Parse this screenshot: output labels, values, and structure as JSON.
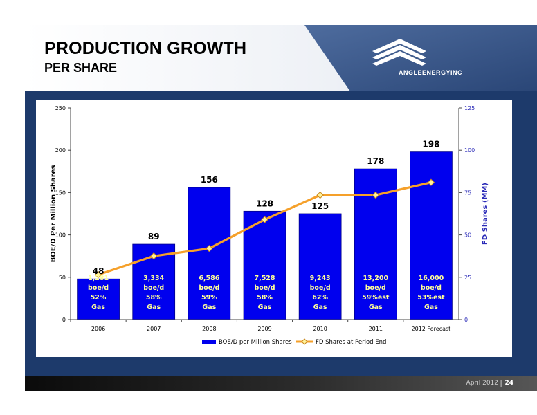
{
  "header": {
    "title": "PRODUCTION GROWTH",
    "subtitle": "PER SHARE",
    "brand": "ANGLEENERGYINC"
  },
  "footer": {
    "date": "April 2012",
    "page": "24"
  },
  "colors": {
    "bar": "#0000ee",
    "line": "#f5a02a",
    "marker": "#fff29a",
    "right_axis": "#2b2bb8",
    "slide_bg": "#1d3a6b"
  },
  "chart_data": {
    "type": "bar",
    "categories": [
      "2006",
      "2007",
      "2008",
      "2009",
      "2010",
      "2011",
      "2012 Forecast"
    ],
    "series": [
      {
        "name": "BOE/D per Million Shares",
        "type": "bar",
        "axis": "left",
        "values": [
          48,
          89,
          156,
          128,
          125,
          178,
          198
        ]
      },
      {
        "name": "FD Shares at Period End",
        "type": "line",
        "axis": "right",
        "values": [
          26.5,
          37.5,
          42,
          59,
          73.5,
          73.5,
          81
        ]
      }
    ],
    "data_labels": [
      "48",
      "89",
      "156",
      "128",
      "125",
      "178",
      "198"
    ],
    "annotations": [
      [
        "1,281",
        "boe/d",
        "52%",
        "Gas"
      ],
      [
        "3,334",
        "boe/d",
        "58%",
        "Gas"
      ],
      [
        "6,586",
        "boe/d",
        "59%",
        "Gas"
      ],
      [
        "7,528",
        "boe/d",
        "58%",
        "Gas"
      ],
      [
        "9,243",
        "boe/d",
        "62%",
        "Gas"
      ],
      [
        "13,200",
        "boe/d",
        "59%est",
        "Gas"
      ],
      [
        "16,000",
        "boe/d",
        "53%est",
        "Gas"
      ]
    ],
    "ylabel": "BOE/D Per Million Shares",
    "ylabel_right": "FD Shares (MM)",
    "ylim": [
      0,
      250
    ],
    "ylim_right": [
      0,
      125
    ],
    "yticks": [
      "0",
      "50",
      "100",
      "150",
      "200",
      "250"
    ],
    "yticks_right": [
      "0",
      "25",
      "50",
      "75",
      "100",
      "125"
    ],
    "grid": false,
    "legend_placement": "bottom"
  }
}
